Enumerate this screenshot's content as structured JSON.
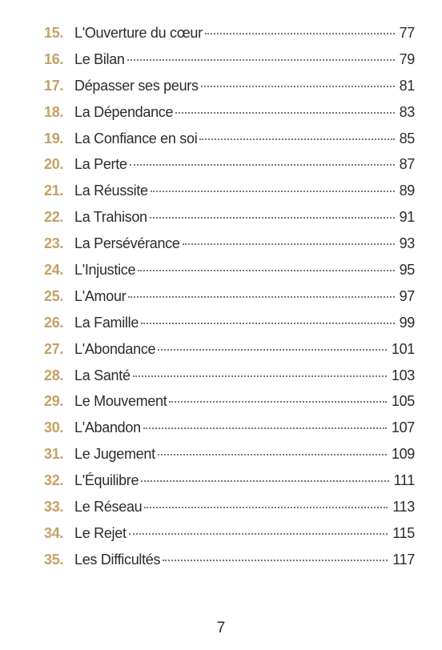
{
  "toc": {
    "entries": [
      {
        "number": "15.",
        "title": "L'Ouverture du cœur",
        "page": "77"
      },
      {
        "number": "16.",
        "title": "Le Bilan",
        "page": "79"
      },
      {
        "number": "17.",
        "title": "Dépasser ses peurs",
        "page": "81"
      },
      {
        "number": "18.",
        "title": "La Dépendance",
        "page": "83"
      },
      {
        "number": "19.",
        "title": "La Confiance en soi",
        "page": "85"
      },
      {
        "number": "20.",
        "title": "La Perte",
        "page": "87"
      },
      {
        "number": "21.",
        "title": "La Réussite",
        "page": "89"
      },
      {
        "number": "22.",
        "title": "La Trahison",
        "page": "91"
      },
      {
        "number": "23.",
        "title": "La Persévérance",
        "page": "93"
      },
      {
        "number": "24.",
        "title": "L'Injustice",
        "page": "95"
      },
      {
        "number": "25.",
        "title": "L'Amour",
        "page": "97"
      },
      {
        "number": "26.",
        "title": "La Famille",
        "page": "99"
      },
      {
        "number": "27.",
        "title": "L'Abondance",
        "page": "101"
      },
      {
        "number": "28.",
        "title": "La Santé",
        "page": "103"
      },
      {
        "number": "29.",
        "title": "Le Mouvement",
        "page": "105"
      },
      {
        "number": "30.",
        "title": "L'Abandon",
        "page": "107"
      },
      {
        "number": "31.",
        "title": "Le Jugement",
        "page": "109"
      },
      {
        "number": "32.",
        "title": "L'Équilibre",
        "page": "111"
      },
      {
        "number": "33.",
        "title": "Le Réseau",
        "page": "113"
      },
      {
        "number": "34.",
        "title": "Le Rejet",
        "page": "115"
      },
      {
        "number": "35.",
        "title": "Les Difficultés",
        "page": "117"
      }
    ]
  },
  "footer": {
    "page_number": "7"
  }
}
